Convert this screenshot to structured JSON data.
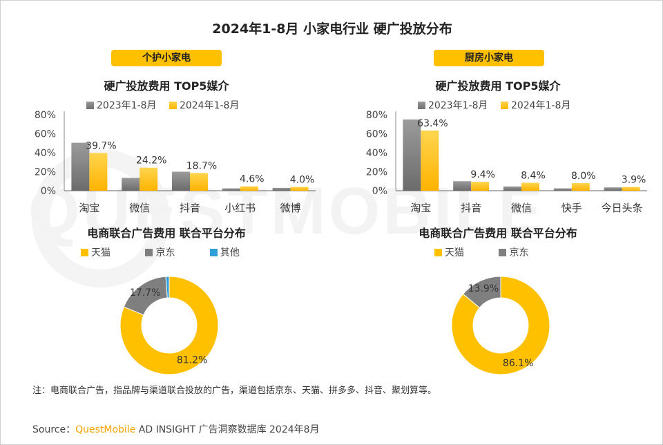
{
  "title": "2024年1-8月 小家电行业 硬广投放分布",
  "watermark": "QUESTMOBILE",
  "colors": {
    "accent": "#ffc000",
    "gray": "#7f7f7f",
    "blue": "#2e9fd8"
  },
  "panels": [
    {
      "tag": "个护小家电",
      "bar_subtitle": "硬广投放费用 TOP5媒介",
      "donut_subtitle": "电商联合广告费用 联合平台分布"
    },
    {
      "tag": "厨房小家电",
      "bar_subtitle": "硬广投放费用 TOP5媒介",
      "donut_subtitle": "电商联合广告费用 联合平台分布"
    }
  ],
  "chart_data": [
    {
      "type": "bar",
      "title": "硬广投放费用 TOP5媒介",
      "categories": [
        "淘宝",
        "微信",
        "抖音",
        "小红书",
        "微博"
      ],
      "series": [
        {
          "name": "2023年1-8月",
          "values": [
            50.5,
            13.5,
            20.0,
            2.5,
            3.0
          ]
        },
        {
          "name": "2024年1-8月",
          "values": [
            39.7,
            24.2,
            18.7,
            4.6,
            4.0
          ]
        }
      ],
      "data_labels": [
        "39.7%",
        "24.2%",
        "18.7%",
        "4.6%",
        "4.0%"
      ],
      "yticks": [
        "0%",
        "20%",
        "40%",
        "60%",
        "80%"
      ],
      "ylim": [
        0,
        80
      ],
      "legend": "top"
    },
    {
      "type": "bar",
      "title": "硬广投放费用 TOP5媒介",
      "categories": [
        "淘宝",
        "抖音",
        "微信",
        "快手",
        "今日头条"
      ],
      "series": [
        {
          "name": "2023年1-8月",
          "values": [
            75.0,
            10.0,
            4.5,
            2.5,
            3.5
          ]
        },
        {
          "name": "2024年1-8月",
          "values": [
            63.4,
            9.4,
            8.4,
            8.0,
            3.9
          ]
        }
      ],
      "data_labels": [
        "63.4%",
        "9.4%",
        "8.4%",
        "8.0%",
        "3.9%"
      ],
      "yticks": [
        "0%",
        "20%",
        "40%",
        "60%",
        "80%"
      ],
      "ylim": [
        0,
        80
      ],
      "legend": "top"
    },
    {
      "type": "pie",
      "title": "电商联合广告费用 联合平台分布",
      "donut": true,
      "slices": [
        {
          "name": "天猫",
          "value": 81.2,
          "label": "81.2%",
          "color": "#ffc000"
        },
        {
          "name": "京东",
          "value": 17.7,
          "label": "17.7%",
          "color": "#7f7f7f"
        },
        {
          "name": "其他",
          "value": 1.1,
          "label": "",
          "color": "#2e9fd8"
        }
      ],
      "legend": "top"
    },
    {
      "type": "pie",
      "title": "电商联合广告费用 联合平台分布",
      "donut": true,
      "slices": [
        {
          "name": "天猫",
          "value": 86.1,
          "label": "86.1%",
          "color": "#ffc000"
        },
        {
          "name": "京东",
          "value": 13.9,
          "label": "13.9%",
          "color": "#7f7f7f"
        }
      ],
      "legend": "top"
    }
  ],
  "note": "注：电商联合广告，指品牌与渠道联合投放的广告，渠道包括京东、天猫、拼多多、抖音、聚划算等。",
  "source": {
    "prefix": "Source：",
    "brand": "QuestMobile",
    "rest": " AD INSIGHT 广告洞察数据库 2024年8月"
  }
}
